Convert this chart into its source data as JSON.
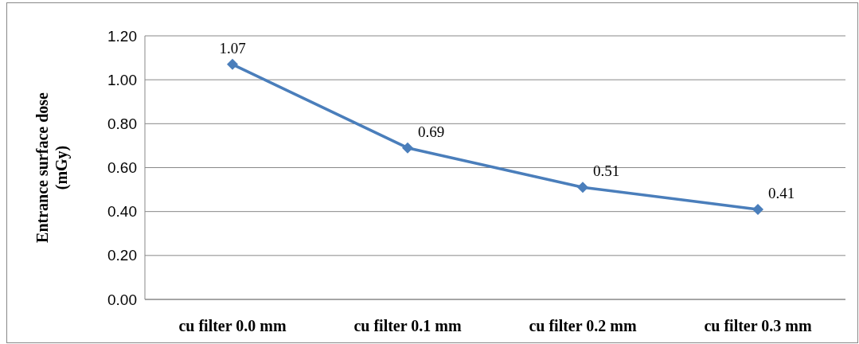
{
  "chart_data": {
    "type": "line",
    "ylabel": "Entrance surface dose (mGy)",
    "categories": [
      "cu filter 0.0 mm",
      "cu filter 0.1 mm",
      "cu filter 0.2 mm",
      "cu filter 0.3 mm"
    ],
    "series": [
      {
        "color": "#4a7ebb",
        "values": [
          1.07,
          0.69,
          0.51,
          0.41
        ]
      }
    ],
    "ylim": [
      0,
      1.2
    ],
    "yticks": [
      {
        "value": 0,
        "label": "0.00"
      },
      {
        "value": 0.2,
        "label": "0.20"
      },
      {
        "value": 0.4,
        "label": "0.40"
      },
      {
        "value": 0.6,
        "label": "0.60"
      },
      {
        "value": 0.8,
        "label": "0.80"
      },
      {
        "value": 1,
        "label": "1.00"
      },
      {
        "value": 1.2,
        "label": "1.20"
      }
    ],
    "grid": "y",
    "marker": "diamond",
    "line_style": "solid",
    "data_labels": true
  }
}
